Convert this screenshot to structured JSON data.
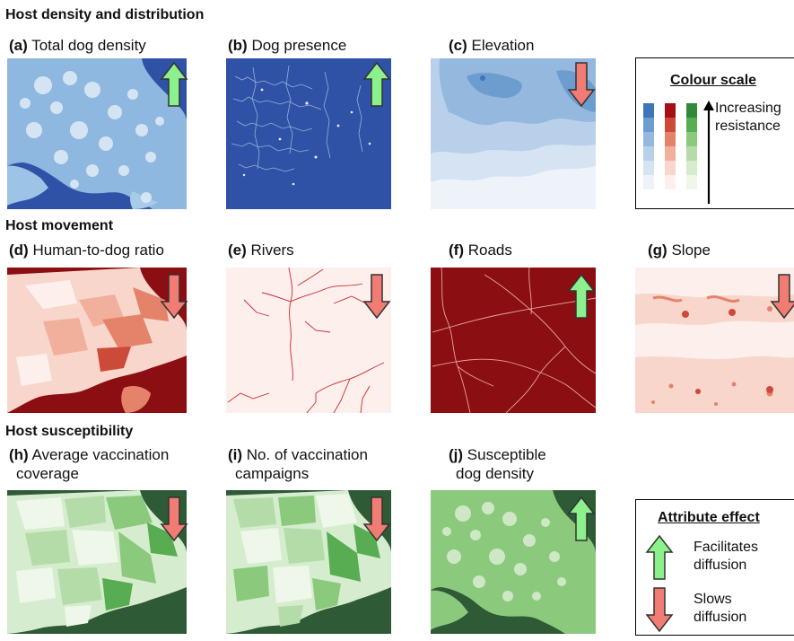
{
  "sections": {
    "host_density": "Host density and distribution",
    "host_movement": "Host movement",
    "host_susceptibility": "Host susceptibility"
  },
  "panels": {
    "a": {
      "letter": "(a)",
      "label": "Total dog density",
      "effect": "facilitates"
    },
    "b": {
      "letter": "(b)",
      "label": "Dog presence",
      "effect": "facilitates"
    },
    "c": {
      "letter": "(c)",
      "label": "Elevation",
      "effect": "slows"
    },
    "d": {
      "letter": "(d)",
      "label": "Human-to-dog ratio",
      "effect": "slows"
    },
    "e": {
      "letter": "(e)",
      "label": "Rivers",
      "effect": "slows"
    },
    "f": {
      "letter": "(f)",
      "label": "Roads",
      "effect": "facilitates"
    },
    "g": {
      "letter": "(g)",
      "label": "Slope",
      "effect": "slows"
    },
    "h": {
      "letter": "(h)",
      "label_line1": "Average vaccination",
      "label_line2": "coverage",
      "effect": "slows"
    },
    "i": {
      "letter": "(i)",
      "label_line1": "No. of vaccination",
      "label_line2": "campaigns",
      "effect": "slows"
    },
    "j": {
      "letter": "(j)",
      "label_line1": "Susceptible",
      "label_line2": "dog density",
      "effect": "facilitates"
    }
  },
  "colour_scale_legend": {
    "title": "Colour scale",
    "text_line1": "Increasing",
    "text_line2": "resistance",
    "blue_ramp": [
      "#eef3fa",
      "#d6e3f3",
      "#b9d0ea",
      "#94b8de",
      "#6d9ccf",
      "#3f74b8"
    ],
    "red_ramp": [
      "#fdf0ec",
      "#f9d6cb",
      "#f1b09c",
      "#e5836a",
      "#cc4a3a",
      "#a50f15"
    ],
    "green_ramp": [
      "#eef7ea",
      "#d6ecce",
      "#b4dca8",
      "#8bc97c",
      "#58ad53",
      "#2f8a3a"
    ]
  },
  "attribute_effect_legend": {
    "title": "Attribute effect",
    "facilitates_line1": "Facilitates",
    "facilitates_line2": "diffusion",
    "slows_line1": "Slows",
    "slows_line2": "diffusion"
  },
  "colors": {
    "up_arrow": "#8cf08c",
    "down_arrow": "#f07c74",
    "dark_blue": "#2f52a6",
    "dark_red": "#8a0e12",
    "dark_green": "#2e5a36"
  }
}
